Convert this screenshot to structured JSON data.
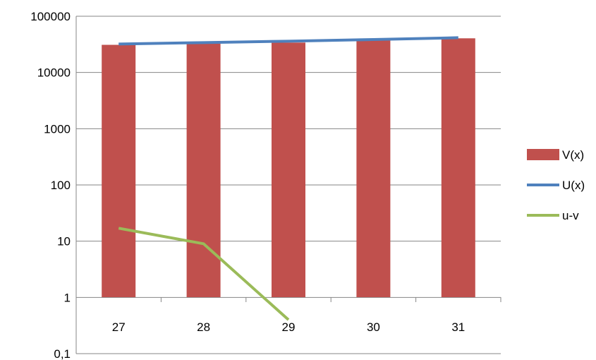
{
  "chart_data": {
    "type": "bar",
    "categories": [
      "27",
      "28",
      "29",
      "30",
      "31"
    ],
    "y_scale": "log10",
    "ylim": [
      0.1,
      100000
    ],
    "y_ticks": [
      "0,1",
      "1",
      "10",
      "100",
      "1000",
      "10000",
      "100000"
    ],
    "y_tick_values": [
      0.1,
      1,
      10,
      100,
      1000,
      10000,
      100000
    ],
    "grid": true,
    "legend_position": "right",
    "series": [
      {
        "name": "V(x)",
        "kind": "bar",
        "color": "#C0504D",
        "values": [
          31000,
          32500,
          34000,
          37000,
          40500
        ]
      },
      {
        "name": "U(x)",
        "kind": "line",
        "color": "#4F81BD",
        "values": [
          32000,
          34000,
          36000,
          38500,
          41500
        ]
      },
      {
        "name": "u-v",
        "kind": "line",
        "color": "#9BBB59",
        "values": [
          17,
          9,
          0.4,
          null,
          null
        ]
      }
    ]
  }
}
